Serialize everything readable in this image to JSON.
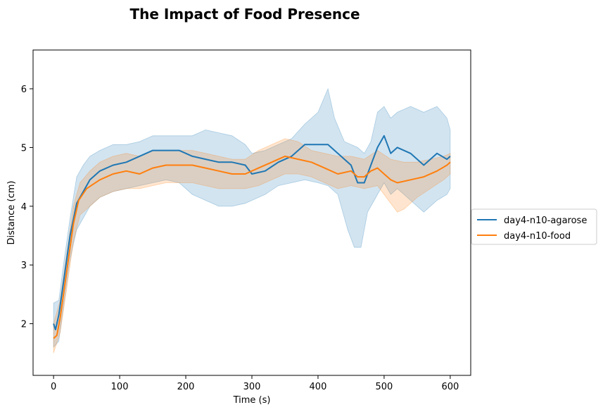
{
  "chart_data": {
    "type": "line",
    "title": "The Impact of Food Presence",
    "xlabel": "Time (s)",
    "ylabel": "Distance (cm)",
    "xlim": [
      -31,
      631
    ],
    "ylim": [
      1.12,
      6.66
    ],
    "xticks": [
      0,
      100,
      200,
      300,
      400,
      500,
      600
    ],
    "yticks": [
      2,
      3,
      4,
      5,
      6
    ],
    "grid": false,
    "legend_position": "outside-right",
    "series": [
      {
        "name": "day4-n10-agarose",
        "color": "#1f77b4",
        "band_color": "#1f77b4",
        "band_opacity": 0.2,
        "points": [
          [
            0,
            2.0
          ],
          [
            3,
            1.9
          ],
          [
            8,
            2.15
          ],
          [
            15,
            2.7
          ],
          [
            25,
            3.5
          ],
          [
            35,
            4.05
          ],
          [
            45,
            4.25
          ],
          [
            55,
            4.45
          ],
          [
            70,
            4.6
          ],
          [
            90,
            4.7
          ],
          [
            110,
            4.75
          ],
          [
            130,
            4.85
          ],
          [
            150,
            4.95
          ],
          [
            170,
            4.95
          ],
          [
            190,
            4.95
          ],
          [
            210,
            4.85
          ],
          [
            230,
            4.8
          ],
          [
            250,
            4.75
          ],
          [
            270,
            4.75
          ],
          [
            290,
            4.7
          ],
          [
            300,
            4.55
          ],
          [
            320,
            4.6
          ],
          [
            340,
            4.75
          ],
          [
            360,
            4.85
          ],
          [
            380,
            5.05
          ],
          [
            400,
            5.05
          ],
          [
            415,
            5.05
          ],
          [
            430,
            4.9
          ],
          [
            450,
            4.7
          ],
          [
            460,
            4.4
          ],
          [
            470,
            4.4
          ],
          [
            480,
            4.7
          ],
          [
            490,
            5.0
          ],
          [
            500,
            5.2
          ],
          [
            510,
            4.9
          ],
          [
            520,
            5.0
          ],
          [
            540,
            4.9
          ],
          [
            560,
            4.7
          ],
          [
            580,
            4.9
          ],
          [
            595,
            4.8
          ],
          [
            600,
            4.85
          ]
        ],
        "upper": [
          [
            0,
            2.35
          ],
          [
            8,
            2.4
          ],
          [
            15,
            3.0
          ],
          [
            25,
            3.8
          ],
          [
            35,
            4.5
          ],
          [
            45,
            4.7
          ],
          [
            55,
            4.85
          ],
          [
            70,
            4.95
          ],
          [
            90,
            5.05
          ],
          [
            110,
            5.05
          ],
          [
            130,
            5.1
          ],
          [
            150,
            5.2
          ],
          [
            170,
            5.2
          ],
          [
            190,
            5.2
          ],
          [
            210,
            5.2
          ],
          [
            230,
            5.3
          ],
          [
            250,
            5.25
          ],
          [
            270,
            5.2
          ],
          [
            290,
            5.05
          ],
          [
            300,
            4.9
          ],
          [
            320,
            4.95
          ],
          [
            340,
            5.05
          ],
          [
            360,
            5.15
          ],
          [
            380,
            5.4
          ],
          [
            400,
            5.6
          ],
          [
            415,
            6.0
          ],
          [
            425,
            5.5
          ],
          [
            440,
            5.1
          ],
          [
            460,
            5.0
          ],
          [
            470,
            4.9
          ],
          [
            480,
            5.1
          ],
          [
            490,
            5.6
          ],
          [
            500,
            5.7
          ],
          [
            510,
            5.5
          ],
          [
            520,
            5.6
          ],
          [
            540,
            5.7
          ],
          [
            560,
            5.6
          ],
          [
            580,
            5.7
          ],
          [
            595,
            5.5
          ],
          [
            600,
            5.3
          ]
        ],
        "lower": [
          [
            0,
            1.6
          ],
          [
            8,
            1.7
          ],
          [
            15,
            2.3
          ],
          [
            25,
            3.1
          ],
          [
            35,
            3.6
          ],
          [
            45,
            3.8
          ],
          [
            55,
            4.0
          ],
          [
            70,
            4.15
          ],
          [
            90,
            4.25
          ],
          [
            110,
            4.3
          ],
          [
            130,
            4.35
          ],
          [
            150,
            4.4
          ],
          [
            170,
            4.45
          ],
          [
            190,
            4.4
          ],
          [
            210,
            4.2
          ],
          [
            230,
            4.1
          ],
          [
            250,
            4.0
          ],
          [
            270,
            4.0
          ],
          [
            290,
            4.05
          ],
          [
            300,
            4.1
          ],
          [
            320,
            4.2
          ],
          [
            340,
            4.35
          ],
          [
            360,
            4.4
          ],
          [
            380,
            4.45
          ],
          [
            400,
            4.4
          ],
          [
            415,
            4.35
          ],
          [
            430,
            4.2
          ],
          [
            445,
            3.6
          ],
          [
            455,
            3.3
          ],
          [
            465,
            3.3
          ],
          [
            475,
            3.9
          ],
          [
            485,
            4.1
          ],
          [
            500,
            4.4
          ],
          [
            510,
            4.2
          ],
          [
            520,
            4.3
          ],
          [
            540,
            4.1
          ],
          [
            560,
            3.9
          ],
          [
            580,
            4.1
          ],
          [
            595,
            4.2
          ],
          [
            600,
            4.3
          ]
        ]
      },
      {
        "name": "day4-n10-food",
        "color": "#ff7f0e",
        "band_color": "#ff7f0e",
        "band_opacity": 0.2,
        "points": [
          [
            0,
            1.75
          ],
          [
            5,
            1.8
          ],
          [
            10,
            2.1
          ],
          [
            20,
            2.9
          ],
          [
            30,
            3.7
          ],
          [
            38,
            4.1
          ],
          [
            50,
            4.3
          ],
          [
            70,
            4.45
          ],
          [
            90,
            4.55
          ],
          [
            110,
            4.6
          ],
          [
            130,
            4.55
          ],
          [
            150,
            4.65
          ],
          [
            170,
            4.7
          ],
          [
            190,
            4.7
          ],
          [
            210,
            4.7
          ],
          [
            230,
            4.65
          ],
          [
            250,
            4.6
          ],
          [
            270,
            4.55
          ],
          [
            290,
            4.55
          ],
          [
            310,
            4.65
          ],
          [
            330,
            4.75
          ],
          [
            350,
            4.85
          ],
          [
            370,
            4.8
          ],
          [
            390,
            4.75
          ],
          [
            410,
            4.65
          ],
          [
            430,
            4.55
          ],
          [
            450,
            4.6
          ],
          [
            460,
            4.5
          ],
          [
            470,
            4.5
          ],
          [
            480,
            4.6
          ],
          [
            490,
            4.65
          ],
          [
            500,
            4.55
          ],
          [
            510,
            4.45
          ],
          [
            520,
            4.4
          ],
          [
            540,
            4.45
          ],
          [
            560,
            4.5
          ],
          [
            580,
            4.6
          ],
          [
            595,
            4.7
          ],
          [
            600,
            4.75
          ]
        ],
        "upper": [
          [
            0,
            2.0
          ],
          [
            10,
            2.4
          ],
          [
            20,
            3.2
          ],
          [
            30,
            4.0
          ],
          [
            40,
            4.4
          ],
          [
            55,
            4.6
          ],
          [
            70,
            4.75
          ],
          [
            90,
            4.85
          ],
          [
            110,
            4.9
          ],
          [
            130,
            4.85
          ],
          [
            150,
            4.95
          ],
          [
            170,
            4.95
          ],
          [
            190,
            4.95
          ],
          [
            210,
            4.95
          ],
          [
            230,
            4.9
          ],
          [
            250,
            4.85
          ],
          [
            270,
            4.8
          ],
          [
            290,
            4.8
          ],
          [
            310,
            4.95
          ],
          [
            330,
            5.05
          ],
          [
            350,
            5.15
          ],
          [
            370,
            5.1
          ],
          [
            390,
            4.95
          ],
          [
            410,
            4.9
          ],
          [
            430,
            4.85
          ],
          [
            450,
            4.85
          ],
          [
            470,
            4.8
          ],
          [
            490,
            4.95
          ],
          [
            510,
            4.8
          ],
          [
            530,
            4.75
          ],
          [
            550,
            4.75
          ],
          [
            570,
            4.8
          ],
          [
            590,
            4.85
          ],
          [
            600,
            4.9
          ]
        ],
        "lower": [
          [
            0,
            1.5
          ],
          [
            10,
            1.85
          ],
          [
            20,
            2.6
          ],
          [
            30,
            3.4
          ],
          [
            40,
            3.85
          ],
          [
            55,
            4.0
          ],
          [
            70,
            4.15
          ],
          [
            90,
            4.25
          ],
          [
            110,
            4.3
          ],
          [
            130,
            4.3
          ],
          [
            150,
            4.35
          ],
          [
            170,
            4.4
          ],
          [
            190,
            4.4
          ],
          [
            210,
            4.4
          ],
          [
            230,
            4.35
          ],
          [
            250,
            4.3
          ],
          [
            270,
            4.3
          ],
          [
            290,
            4.3
          ],
          [
            310,
            4.35
          ],
          [
            330,
            4.45
          ],
          [
            350,
            4.55
          ],
          [
            370,
            4.55
          ],
          [
            390,
            4.5
          ],
          [
            410,
            4.4
          ],
          [
            430,
            4.3
          ],
          [
            450,
            4.35
          ],
          [
            470,
            4.3
          ],
          [
            490,
            4.35
          ],
          [
            510,
            4.05
          ],
          [
            520,
            3.9
          ],
          [
            530,
            3.95
          ],
          [
            550,
            4.15
          ],
          [
            570,
            4.3
          ],
          [
            590,
            4.45
          ],
          [
            600,
            4.55
          ]
        ]
      }
    ]
  }
}
